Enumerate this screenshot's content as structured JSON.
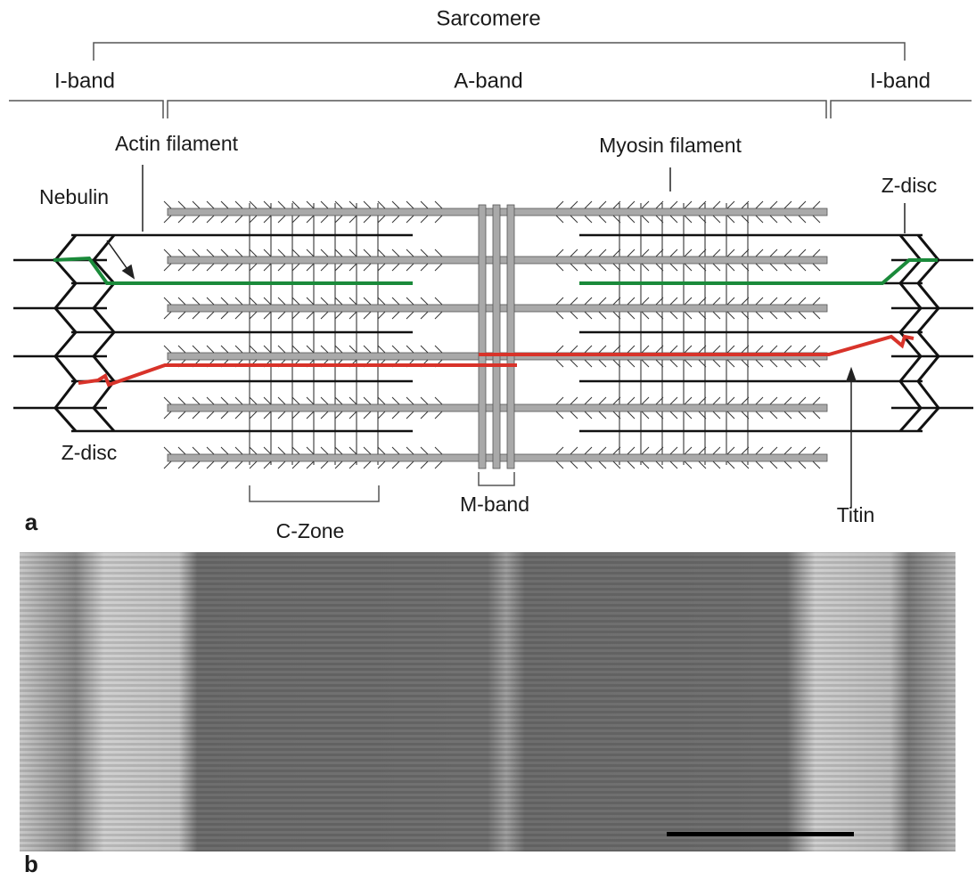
{
  "diagram": {
    "title": "Sarcomere",
    "bands": [
      "I-band",
      "A-band",
      "I-band"
    ],
    "labels": [
      "Actin filament",
      "Myosin filament",
      "Nebulin",
      "Z-disc",
      "Z-disc",
      "C-Zone",
      "M-band",
      "Titin"
    ],
    "panels": [
      "a",
      "b"
    ]
  }
}
